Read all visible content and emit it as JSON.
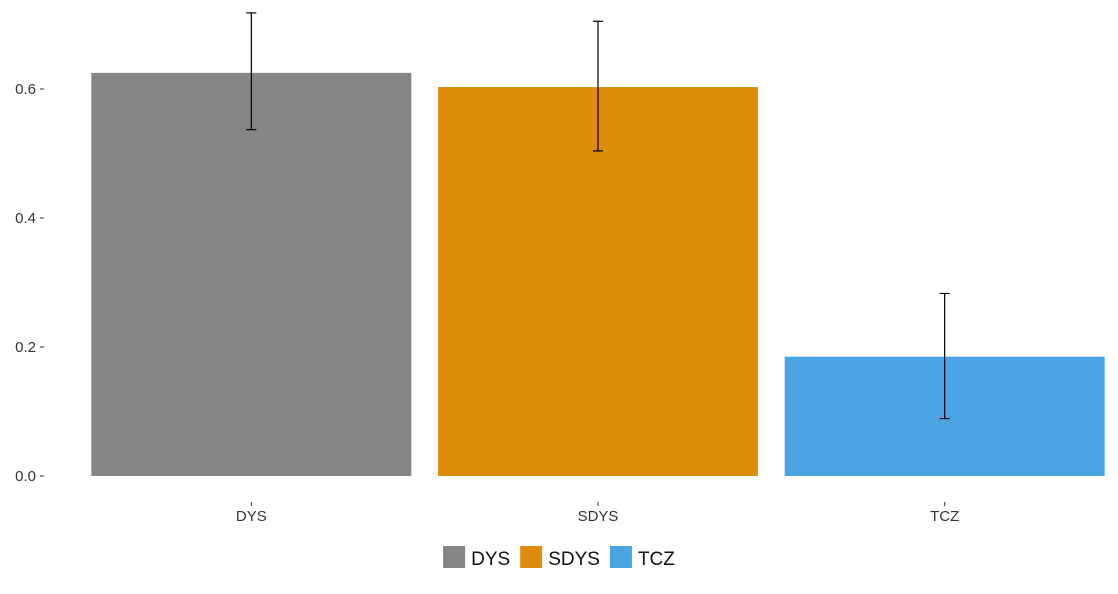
{
  "chart_data": {
    "type": "bar",
    "categories": [
      "DYS",
      "SDYS",
      "TCZ"
    ],
    "values": [
      0.625,
      0.603,
      0.185
    ],
    "error_low": [
      0.537,
      0.504,
      0.089
    ],
    "error_high": [
      0.718,
      0.705,
      0.283
    ],
    "colors": [
      "#858585",
      "#DD8D0A",
      "#4AA3E3"
    ],
    "ylim": [
      0,
      0.72
    ],
    "yticks": [
      0.0,
      0.2,
      0.4,
      0.6
    ],
    "ytick_labels": [
      "0.0",
      "0.2",
      "0.4",
      "0.6"
    ],
    "grid": false,
    "legend": {
      "position": "bottom",
      "entries": [
        "DYS",
        "SDYS",
        "TCZ"
      ]
    }
  }
}
